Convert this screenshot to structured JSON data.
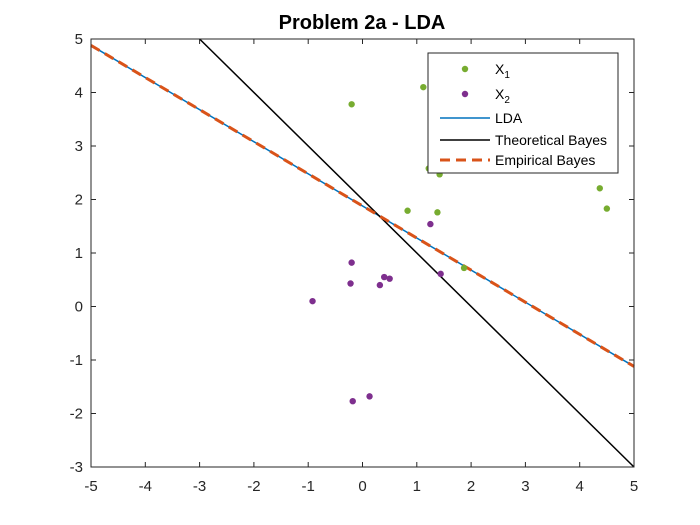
{
  "chart_data": {
    "type": "scatter",
    "title": "Problem 2a - LDA",
    "xlabel": "",
    "ylabel": "",
    "xlim": [
      -5,
      5
    ],
    "ylim": [
      -3,
      5
    ],
    "xticks": [
      -5,
      -4,
      -3,
      -2,
      -1,
      0,
      1,
      2,
      3,
      4,
      5
    ],
    "yticks": [
      -3,
      -2,
      -1,
      0,
      1,
      2,
      3,
      4,
      5
    ],
    "grid": false,
    "legend_position": "top-right",
    "colors": {
      "x1": "#77AC30",
      "x2": "#7E2F8E",
      "lda": "#0072BD",
      "theoretical_bayes": "#000000",
      "empirical_bayes": "#D95319",
      "axes": "#262626"
    },
    "series": [
      {
        "name": "X",
        "subscript": "1",
        "kind": "points",
        "points": [
          [
            -0.2,
            3.78
          ],
          [
            1.12,
            4.1
          ],
          [
            1.28,
            2.72
          ],
          [
            1.22,
            2.58
          ],
          [
            1.42,
            2.47
          ],
          [
            0.83,
            1.79
          ],
          [
            1.38,
            1.76
          ],
          [
            1.87,
            0.72
          ],
          [
            4.37,
            2.21
          ],
          [
            4.5,
            1.83
          ]
        ]
      },
      {
        "name": "X",
        "subscript": "2",
        "kind": "points",
        "points": [
          [
            -0.92,
            0.1
          ],
          [
            -0.2,
            0.82
          ],
          [
            -0.22,
            0.43
          ],
          [
            0.4,
            0.55
          ],
          [
            0.5,
            0.52
          ],
          [
            0.32,
            0.4
          ],
          [
            1.25,
            1.54
          ],
          [
            1.44,
            0.61
          ],
          [
            -0.18,
            -1.77
          ],
          [
            0.13,
            -1.68
          ]
        ]
      },
      {
        "name": "LDA",
        "kind": "line",
        "points": [
          [
            -5,
            4.88
          ],
          [
            5,
            -1.12
          ]
        ]
      },
      {
        "name": "Theoretical Bayes",
        "kind": "line",
        "points": [
          [
            -3,
            5
          ],
          [
            5,
            -3
          ]
        ]
      },
      {
        "name": "Empirical Bayes",
        "kind": "dashed-line",
        "points": [
          [
            -5,
            4.88
          ],
          [
            5,
            -1.12
          ]
        ]
      }
    ]
  }
}
